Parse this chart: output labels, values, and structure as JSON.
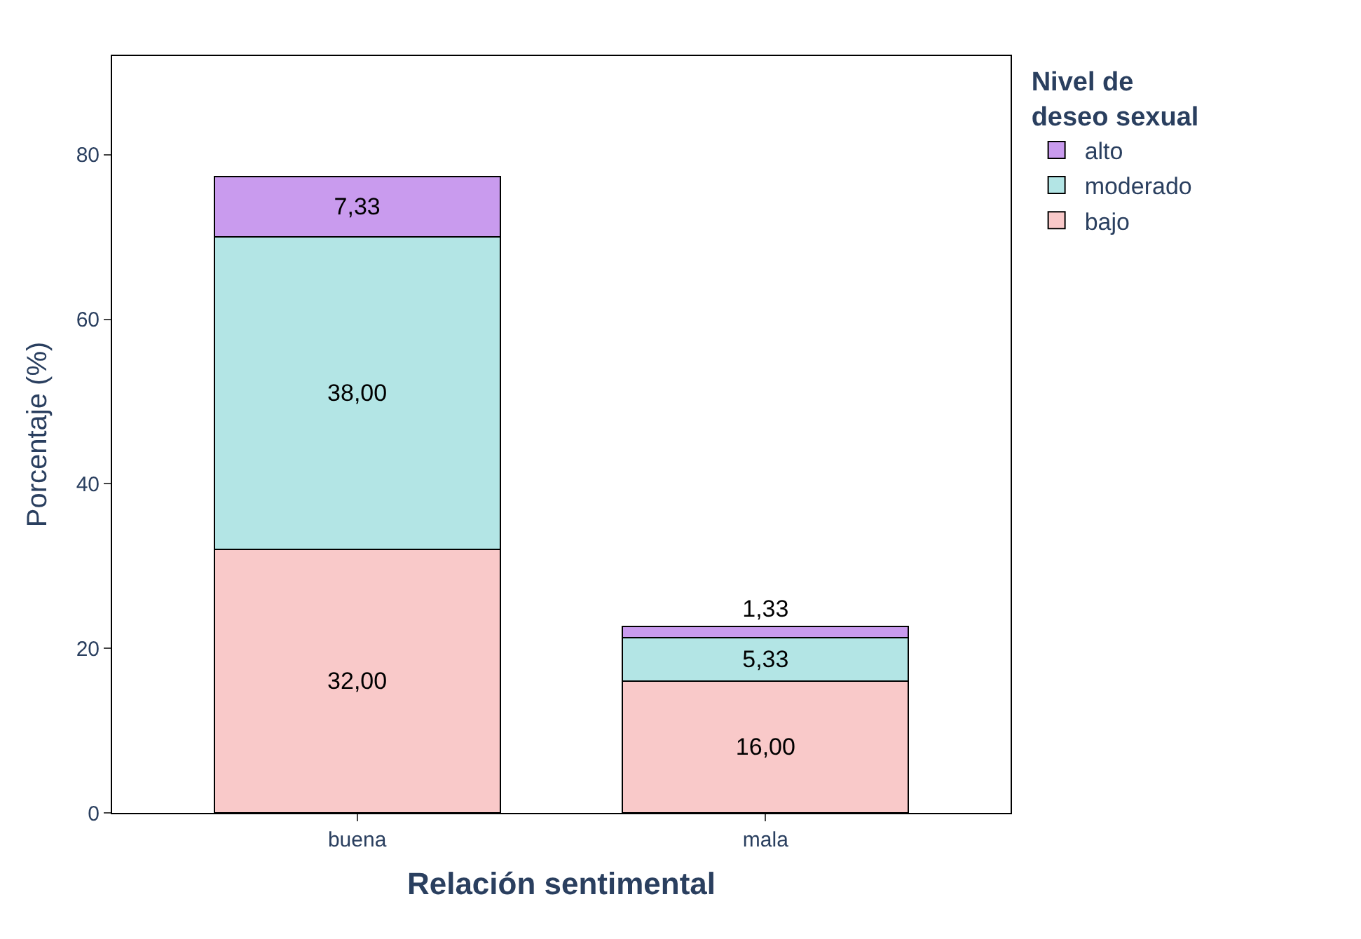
{
  "chart_data": {
    "type": "bar",
    "stacked": true,
    "xlabel": "Relación sentimental",
    "ylabel": "Porcentaje (%)",
    "legend_title": "Nivel de deseo sexual",
    "legend": "top right",
    "categories": [
      "buena",
      "mala"
    ],
    "series": [
      {
        "name": "bajo",
        "color": "#f9c9c9",
        "values": [
          32.0,
          16.0
        ],
        "value_labels": [
          "32,00",
          "16,00"
        ]
      },
      {
        "name": "moderado",
        "color": "#b3e5e5",
        "values": [
          38.0,
          5.33
        ],
        "value_labels": [
          "38,00",
          "5,33"
        ]
      },
      {
        "name": "alto",
        "color": "#c99bee",
        "values": [
          7.33,
          1.33
        ],
        "value_labels": [
          "7,33",
          "1,33"
        ]
      }
    ],
    "ylim": [
      0,
      92
    ],
    "yticks": [
      0,
      20,
      40,
      60,
      80
    ],
    "grid": false
  }
}
